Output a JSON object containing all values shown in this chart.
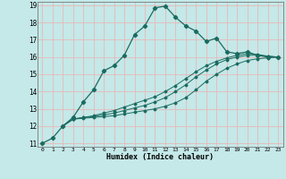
{
  "title": "",
  "xlabel": "Humidex (Indice chaleur)",
  "bg_color": "#c5e8e8",
  "grid_color": "#e8b8b8",
  "line_color": "#1a6b60",
  "xlim": [
    -0.5,
    23.5
  ],
  "ylim": [
    10.8,
    19.2
  ],
  "xticks": [
    0,
    1,
    2,
    3,
    4,
    5,
    6,
    7,
    8,
    9,
    10,
    11,
    12,
    13,
    14,
    15,
    16,
    17,
    18,
    19,
    20,
    21,
    22,
    23
  ],
  "yticks": [
    11,
    12,
    13,
    14,
    15,
    16,
    17,
    18,
    19
  ],
  "line1_x": [
    0,
    1,
    2,
    3,
    4,
    5,
    6,
    7,
    8,
    9,
    10,
    11,
    12,
    13,
    14,
    15,
    16,
    17,
    18,
    19,
    20,
    21,
    22,
    23
  ],
  "line1_y": [
    11.0,
    11.3,
    12.0,
    12.5,
    13.4,
    14.1,
    15.2,
    15.5,
    16.1,
    17.3,
    17.8,
    18.85,
    18.95,
    18.3,
    17.8,
    17.5,
    16.9,
    17.1,
    16.3,
    16.2,
    16.3,
    16.1,
    16.0,
    16.0
  ],
  "line2_x": [
    2,
    3,
    4,
    5,
    6,
    7,
    8,
    9,
    10,
    11,
    12,
    13,
    14,
    15,
    16,
    17,
    18,
    19,
    20,
    21,
    22,
    23
  ],
  "line2_y": [
    12.0,
    12.4,
    12.45,
    12.5,
    12.55,
    12.6,
    12.7,
    12.8,
    12.9,
    13.0,
    13.15,
    13.35,
    13.65,
    14.1,
    14.6,
    15.0,
    15.35,
    15.6,
    15.8,
    15.9,
    15.95,
    16.0
  ],
  "line3_x": [
    2,
    3,
    4,
    5,
    6,
    7,
    8,
    9,
    10,
    11,
    12,
    13,
    14,
    15,
    16,
    17,
    18,
    19,
    20,
    21,
    22,
    23
  ],
  "line3_y": [
    12.0,
    12.4,
    12.5,
    12.55,
    12.65,
    12.75,
    12.9,
    13.05,
    13.2,
    13.4,
    13.65,
    14.0,
    14.4,
    14.85,
    15.25,
    15.6,
    15.85,
    16.0,
    16.1,
    16.1,
    16.05,
    16.0
  ],
  "line4_x": [
    2,
    3,
    4,
    5,
    6,
    7,
    8,
    9,
    10,
    11,
    12,
    13,
    14,
    15,
    16,
    17,
    18,
    19,
    20,
    21,
    22,
    23
  ],
  "line4_y": [
    12.0,
    12.4,
    12.5,
    12.6,
    12.75,
    12.9,
    13.1,
    13.3,
    13.5,
    13.7,
    14.0,
    14.35,
    14.75,
    15.15,
    15.5,
    15.75,
    15.95,
    16.1,
    16.2,
    16.15,
    16.05,
    16.0
  ]
}
